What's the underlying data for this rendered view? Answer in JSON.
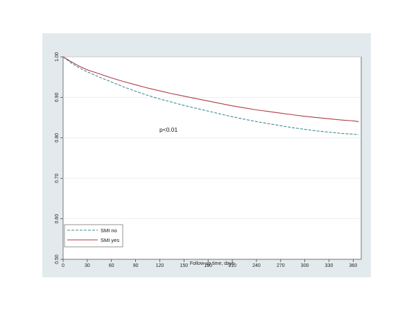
{
  "chart_data": {
    "type": "line",
    "xlabel": "Follow-up time, days",
    "ylabel": "",
    "xlim": [
      0,
      370
    ],
    "ylim": [
      0.5,
      1.0
    ],
    "x_ticks": [
      0,
      30,
      60,
      90,
      120,
      150,
      180,
      210,
      240,
      270,
      300,
      330,
      360
    ],
    "y_ticks": [
      0.5,
      0.6,
      0.7,
      0.8,
      0.9,
      1.0
    ],
    "y_tick_labels": [
      "0.50",
      "0.60",
      "0.70",
      "0.80",
      "0.90",
      "1.00"
    ],
    "grid": true,
    "annotation": "p<0.01",
    "legend_position": "bottom-left",
    "series": [
      {
        "name": "SMI no",
        "color": "#3d8a8f",
        "style": "dashed",
        "x": [
          0,
          10,
          20,
          30,
          45,
          60,
          75,
          90,
          105,
          120,
          135,
          150,
          165,
          180,
          195,
          210,
          225,
          240,
          255,
          270,
          285,
          300,
          315,
          330,
          345,
          360,
          367
        ],
        "y": [
          1.0,
          0.985,
          0.973,
          0.963,
          0.95,
          0.938,
          0.926,
          0.915,
          0.905,
          0.896,
          0.888,
          0.88,
          0.873,
          0.866,
          0.859,
          0.852,
          0.846,
          0.84,
          0.835,
          0.83,
          0.825,
          0.821,
          0.817,
          0.814,
          0.811,
          0.809,
          0.808
        ]
      },
      {
        "name": "SMI yes",
        "color": "#b03a48",
        "style": "solid",
        "x": [
          0,
          10,
          20,
          30,
          45,
          60,
          75,
          90,
          105,
          120,
          135,
          150,
          165,
          180,
          195,
          210,
          225,
          240,
          255,
          270,
          285,
          300,
          315,
          330,
          345,
          360,
          367
        ],
        "y": [
          1.0,
          0.988,
          0.977,
          0.968,
          0.958,
          0.948,
          0.939,
          0.931,
          0.923,
          0.916,
          0.909,
          0.903,
          0.897,
          0.891,
          0.885,
          0.879,
          0.874,
          0.869,
          0.865,
          0.861,
          0.857,
          0.853,
          0.85,
          0.847,
          0.844,
          0.842,
          0.84
        ]
      }
    ]
  }
}
